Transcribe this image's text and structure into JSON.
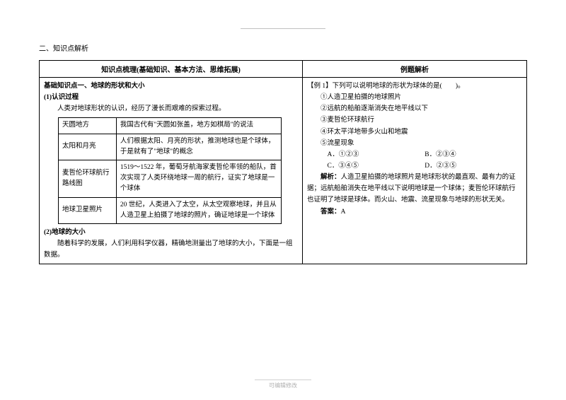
{
  "section_header": "二、知识点解析",
  "table_header_left": "知识点梳理(基础知识、基本方法、思维拓展)",
  "table_header_right": "例题解析",
  "left": {
    "h1": "基础知识点一、地球的形状和大小",
    "sub1": "(1)认识过程",
    "intro": "人类对地球形状的认识，经历了漫长而艰难的探索过程。",
    "rows": [
      {
        "c1": "天圆地方",
        "c2": "我国古代有\"天圆如张盖，地方如棋局\"的说法"
      },
      {
        "c1": "太阳和月亮",
        "c2": "人们根据太阳、月亮的形状，推测地球也是个球体，于是就有了\"地球\"的概念"
      },
      {
        "c1": "麦哲伦环球航行路线图",
        "c2": "1519～1522 年，葡萄牙航海家麦哲伦率领的船队，首次实现了人类环绕地球一周的航行，证实了地球是一个球体"
      },
      {
        "c1": "地球卫星照片",
        "c2": "20 世纪，人类进入了太空，从太空观察地球，并且从人造卫星上拍摄了地球的照片，确证地球是一个球体"
      }
    ],
    "sub2": "(2)地球的大小",
    "outro": "随着科学的发展，人们利用科学仪器，精确地测量出了地球的大小，下面是一组数据。"
  },
  "right": {
    "q_label": "【例 1】下列可以说明地球的形状为球体的是(　　)。",
    "items": [
      "①人造卫星拍摄的地球照片",
      "②远航的船舶逐渐消失在地平线以下",
      "③麦哲伦环球航行",
      "④环太平洋地带多火山和地震",
      "⑤流星现象"
    ],
    "options": {
      "A": "A．①②③",
      "B": "B．②③④",
      "C": "C．③④⑤",
      "D": "D．②③⑤"
    },
    "analysis_label": "解析：",
    "analysis": "人造卫星拍摄的地球照片是地球形状的最直观、最有力的证据；远航船舶消失在地平线以下说明地球是一个球体；麦哲伦环球航行也证明了地球是球体。而火山、地震、流星现象与地球的形状无关。",
    "answer_label": "答案：",
    "answer": "A"
  },
  "footer": "可编辑修改"
}
